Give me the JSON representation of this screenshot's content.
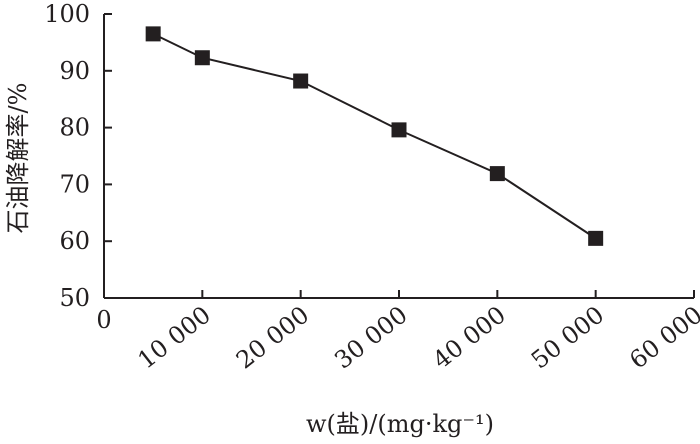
{
  "chart_data": {
    "type": "line",
    "xlabel": "w(盐)/(mg·kg⁻¹)",
    "ylabel": "石油降解率/%",
    "xlim": [
      0,
      60000
    ],
    "ylim": [
      50,
      100
    ],
    "x_ticks": [
      0,
      10000,
      20000,
      30000,
      40000,
      50000,
      60000
    ],
    "x_tick_labels": [
      "0",
      "10 000",
      "20 000",
      "30 000",
      "40 000",
      "50 000",
      "60 000"
    ],
    "y_ticks": [
      50,
      60,
      70,
      80,
      90,
      100
    ],
    "y_tick_labels": [
      "50",
      "60",
      "70",
      "80",
      "90",
      "100"
    ],
    "grid": false,
    "marker": "square",
    "series": [
      {
        "x": [
          5000,
          10000,
          20000,
          30000,
          40000,
          50000
        ],
        "y": [
          96.5,
          92.3,
          88.2,
          79.6,
          71.9,
          60.5
        ]
      }
    ]
  }
}
